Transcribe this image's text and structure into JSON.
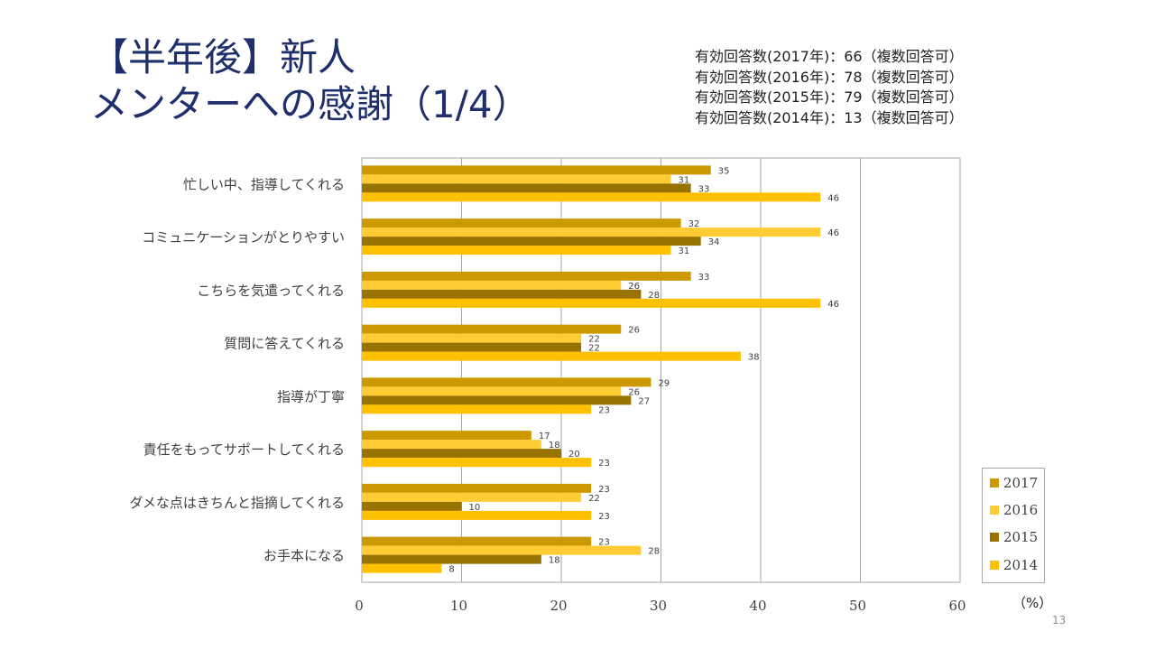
{
  "slide": {
    "title_line1": "【半年後】新人",
    "title_line2": "メンターへの感謝（1/4）",
    "notes": [
      "有効回答数(2017年)：66（複数回答可）",
      "有効回答数(2016年)：78（複数回答可）",
      "有効回答数(2015年)：79（複数回答可）",
      "有効回答数(2014年)：13（複数回答可）"
    ],
    "unit_label": "（%）",
    "page_number": "13"
  },
  "chart_data": {
    "type": "bar",
    "orientation": "horizontal",
    "title": "",
    "xlabel": "（%）",
    "ylabel": "",
    "xlim": [
      0,
      60
    ],
    "xticks": [
      0,
      10,
      20,
      30,
      40,
      50,
      60
    ],
    "grid": true,
    "legend_position": "bottom-right",
    "categories": [
      "忙しい中、指導してくれる",
      "コミュニケーションがとりやすい",
      "こちらを気遣ってくれる",
      "質問に答えてくれる",
      "指導が丁寧",
      "責任をもってサポートしてくれる",
      "ダメな点はきちんと指摘してくれる",
      "お手本になる"
    ],
    "series": [
      {
        "name": "2017",
        "color": "#cc9900",
        "values": [
          35,
          32,
          33,
          26,
          29,
          17,
          23,
          23
        ]
      },
      {
        "name": "2016",
        "color": "#ffcc33",
        "values": [
          31,
          46,
          26,
          22,
          26,
          18,
          22,
          28
        ]
      },
      {
        "name": "2015",
        "color": "#997300",
        "values": [
          33,
          34,
          28,
          22,
          27,
          20,
          10,
          18
        ]
      },
      {
        "name": "2014",
        "color": "#ffc000",
        "values": [
          46,
          31,
          46,
          38,
          23,
          23,
          23,
          8
        ]
      }
    ]
  }
}
